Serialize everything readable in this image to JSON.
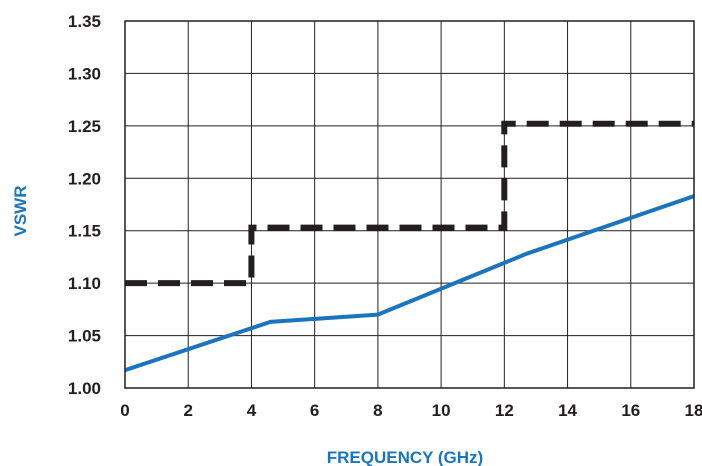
{
  "chart_data": {
    "type": "line",
    "title": "",
    "xlabel": "FREQUENCY (GHz)",
    "ylabel": "VSWR",
    "xlim": [
      0,
      18
    ],
    "ylim": [
      1.0,
      1.35
    ],
    "x_ticks": [
      "0",
      "2",
      "4",
      "6",
      "8",
      "10",
      "12",
      "14",
      "16",
      "18"
    ],
    "y_ticks": [
      "1.00",
      "1.05",
      "1.10",
      "1.15",
      "1.20",
      "1.25",
      "1.30",
      "1.35"
    ],
    "grid": true,
    "legend": "none",
    "series": [
      {
        "style": "dashed",
        "color": "#231f20",
        "x": [
          0,
          4,
          4,
          12,
          12,
          18
        ],
        "y": [
          1.1,
          1.1,
          1.153,
          1.153,
          1.252,
          1.252
        ]
      },
      {
        "style": "solid",
        "color": "#1c75bc",
        "x": [
          0,
          4.6,
          8,
          12.7,
          18
        ],
        "y": [
          1.017,
          1.063,
          1.07,
          1.128,
          1.183
        ]
      }
    ]
  },
  "colors": {
    "axis_title": "#1c75bc",
    "tick_label": "#231f20",
    "grid": "#231f20"
  }
}
